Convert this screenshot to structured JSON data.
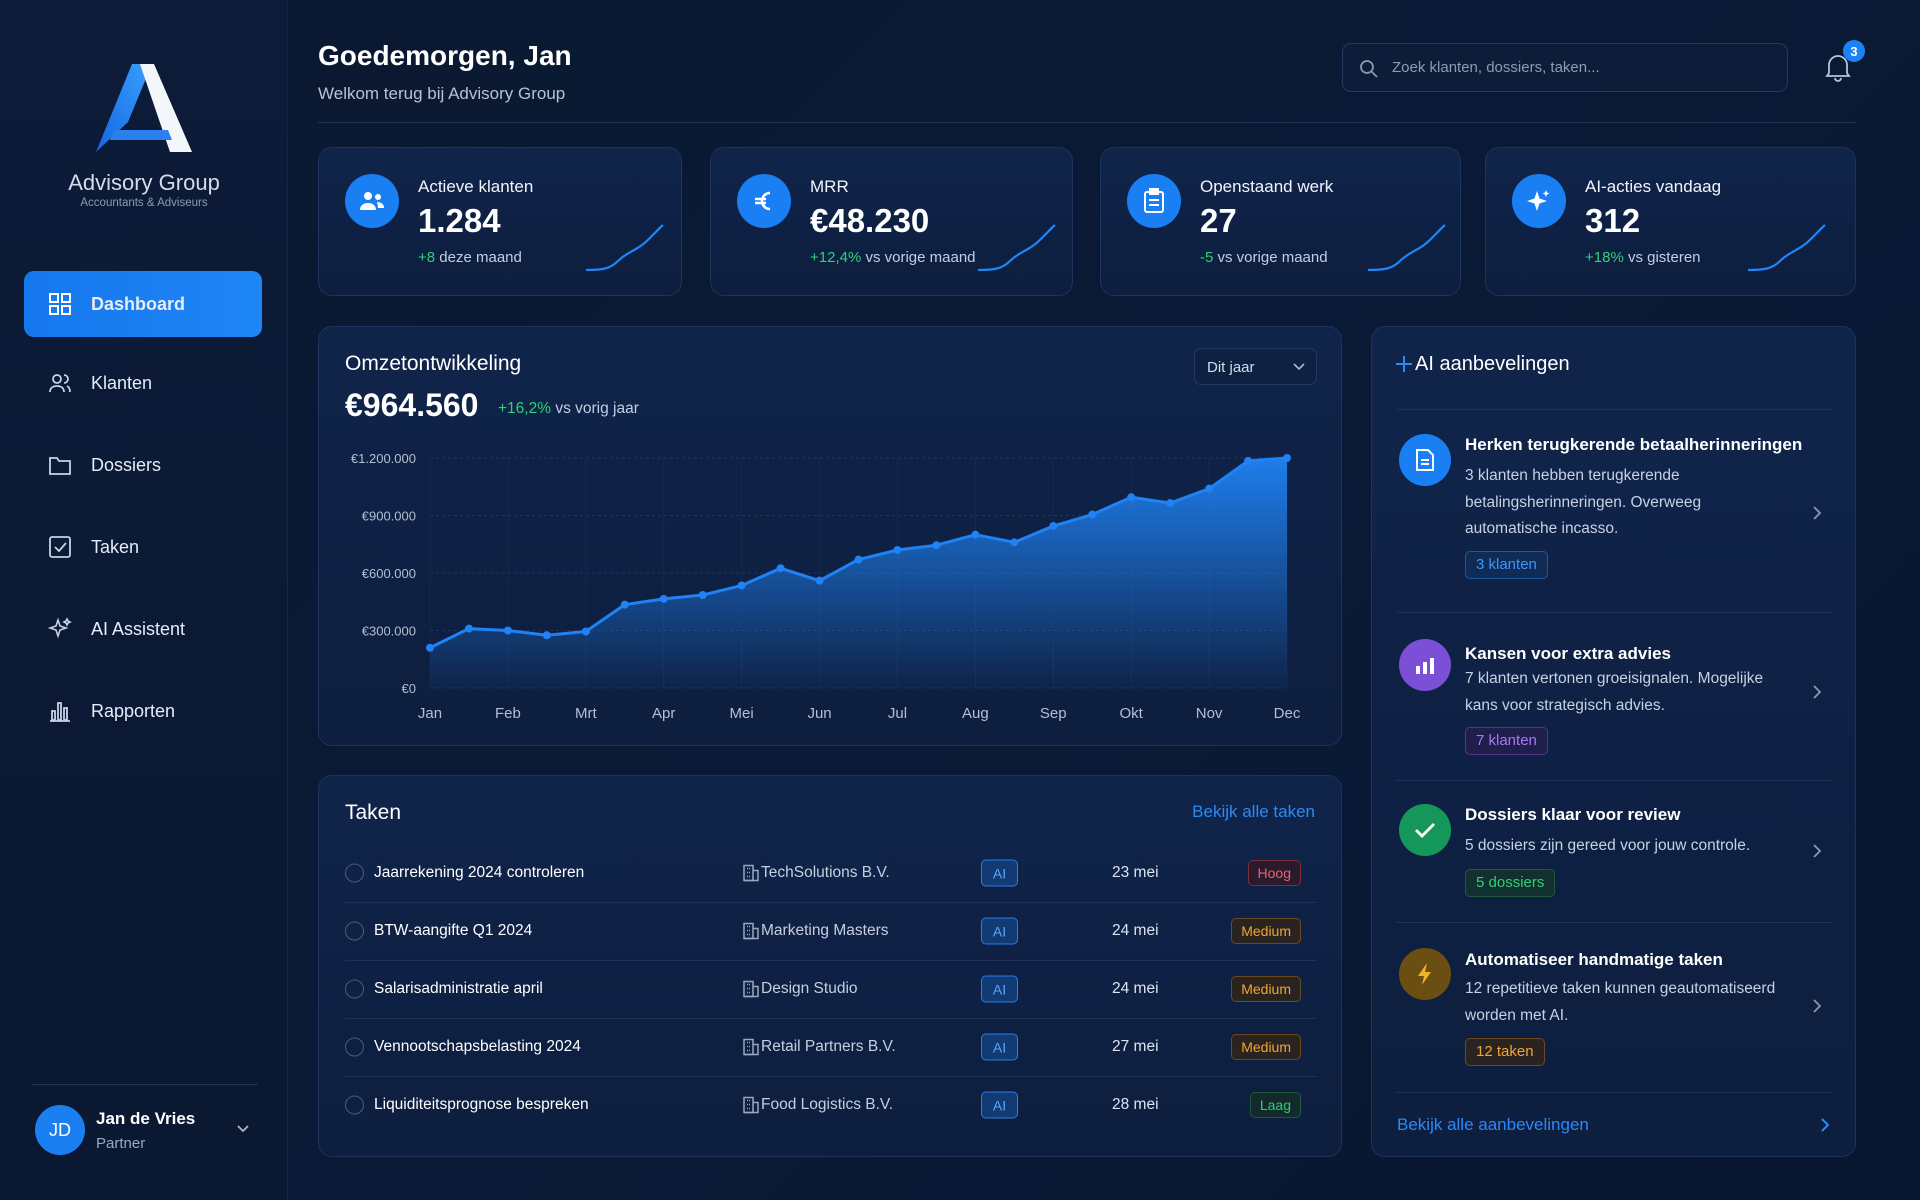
{
  "sidebar": {
    "brand": "Advisory Group",
    "tagline": "Accountants & Adviseurs",
    "nav": [
      "Dashboard",
      "Klanten",
      "Dossiers",
      "Taken",
      "AI Assistent",
      "Rapporten"
    ],
    "user": {
      "initials": "JD",
      "name": "Jan de Vries",
      "role": "Partner"
    }
  },
  "header": {
    "greeting": "Goedemorgen, Jan",
    "subtitle": "Welkom terug bij Advisory Group",
    "search_placeholder": "Zoek klanten, dossiers, taken...",
    "notifications": "3"
  },
  "kpis": [
    {
      "label": "Actieve klanten",
      "value": "1.284",
      "change": "+8",
      "change_text": "deze maand"
    },
    {
      "label": "MRR",
      "value": "€48.230",
      "change": "+12,4%",
      "change_text": "vs vorige maand"
    },
    {
      "label": "Openstaand werk",
      "value": "27",
      "change": "-5",
      "change_text": "vs vorige maand"
    },
    {
      "label": "AI-acties vandaag",
      "value": "312",
      "change": "+18%",
      "change_text": "vs gisteren"
    }
  ],
  "chart_data": {
    "type": "area",
    "title": "Omzetontwikkeling",
    "total": "€964.560",
    "change": "+16,2%",
    "change_text": "vs vorig jaar",
    "period": "Dit jaar",
    "x": [
      0,
      0.5,
      1,
      1.5,
      2,
      2.5,
      3,
      3.5,
      4,
      4.5,
      5,
      5.5,
      6,
      6.5,
      7,
      7.5,
      8,
      8.5,
      9,
      9.5,
      10,
      10.5,
      11
    ],
    "values": [
      210000,
      310000,
      300000,
      275000,
      295000,
      435000,
      465000,
      485000,
      535000,
      625000,
      560000,
      670000,
      720000,
      745000,
      800000,
      760000,
      845000,
      905000,
      995000,
      965000,
      1040000,
      1185000,
      1200000
    ],
    "xlim": [
      0,
      11
    ],
    "xticks": [
      {
        "value": 0,
        "label": "Jan"
      },
      {
        "value": 1,
        "label": "Feb"
      },
      {
        "value": 2,
        "label": "Mrt"
      },
      {
        "value": 3,
        "label": "Apr"
      },
      {
        "value": 4,
        "label": "Mei"
      },
      {
        "value": 5,
        "label": "Jun"
      },
      {
        "value": 6,
        "label": "Jul"
      },
      {
        "value": 7,
        "label": "Aug"
      },
      {
        "value": 8,
        "label": "Sep"
      },
      {
        "value": 9,
        "label": "Okt"
      },
      {
        "value": 10,
        "label": "Nov"
      },
      {
        "value": 11,
        "label": "Dec"
      }
    ],
    "ylim": [
      0,
      1200000
    ],
    "yticks": [
      {
        "value": 0,
        "label": "€0"
      },
      {
        "value": 300000,
        "label": "€300.000"
      },
      {
        "value": 600000,
        "label": "€600.000"
      },
      {
        "value": 900000,
        "label": "€900.000"
      },
      {
        "value": 1200000,
        "label": "€1.200.000"
      }
    ],
    "color": "#1f82f5",
    "grid": true
  },
  "tasks": {
    "title": "Taken",
    "link": "Bekijk alle taken",
    "rows": [
      {
        "task": "Jaarrekening 2024 controleren",
        "client": "TechSolutions B.V.",
        "tag": "AI",
        "date": "23 mei",
        "priority": "Hoog"
      },
      {
        "task": "BTW-aangifte Q1 2024",
        "client": "Marketing Masters",
        "tag": "AI",
        "date": "24 mei",
        "priority": "Medium"
      },
      {
        "task": "Salarisadministratie april",
        "client": "Design Studio",
        "tag": "AI",
        "date": "24 mei",
        "priority": "Medium"
      },
      {
        "task": "Vennootschapsbelasting 2024",
        "client": "Retail Partners B.V.",
        "tag": "AI",
        "date": "27 mei",
        "priority": "Medium"
      },
      {
        "task": "Liquiditeitsprognose bespreken",
        "client": "Food Logistics B.V.",
        "tag": "AI",
        "date": "28 mei",
        "priority": "Laag"
      }
    ]
  },
  "ai": {
    "title": "AI aanbevelingen",
    "link": "Bekijk alle aanbevelingen",
    "items": [
      {
        "title": "Herken terugkerende betaalherinneringen",
        "description": "3 klanten hebben terugkerende betalingsherinneringen. Overweeg automatische incasso.",
        "tag": "3 klanten"
      },
      {
        "title": "Kansen voor extra advies",
        "description": "7 klanten vertonen groeisignalen. Mogelijke kans voor strategisch advies.",
        "tag": "7 klanten"
      },
      {
        "title": "Dossiers klaar voor review",
        "description": "5 dossiers zijn gereed voor jouw controle.",
        "tag": "5 dossiers"
      },
      {
        "title": "Automatiseer handmatige taken",
        "description": "12 repetitieve taken kunnen geautomatiseerd worden met AI.",
        "tag": "12 taken"
      }
    ]
  }
}
